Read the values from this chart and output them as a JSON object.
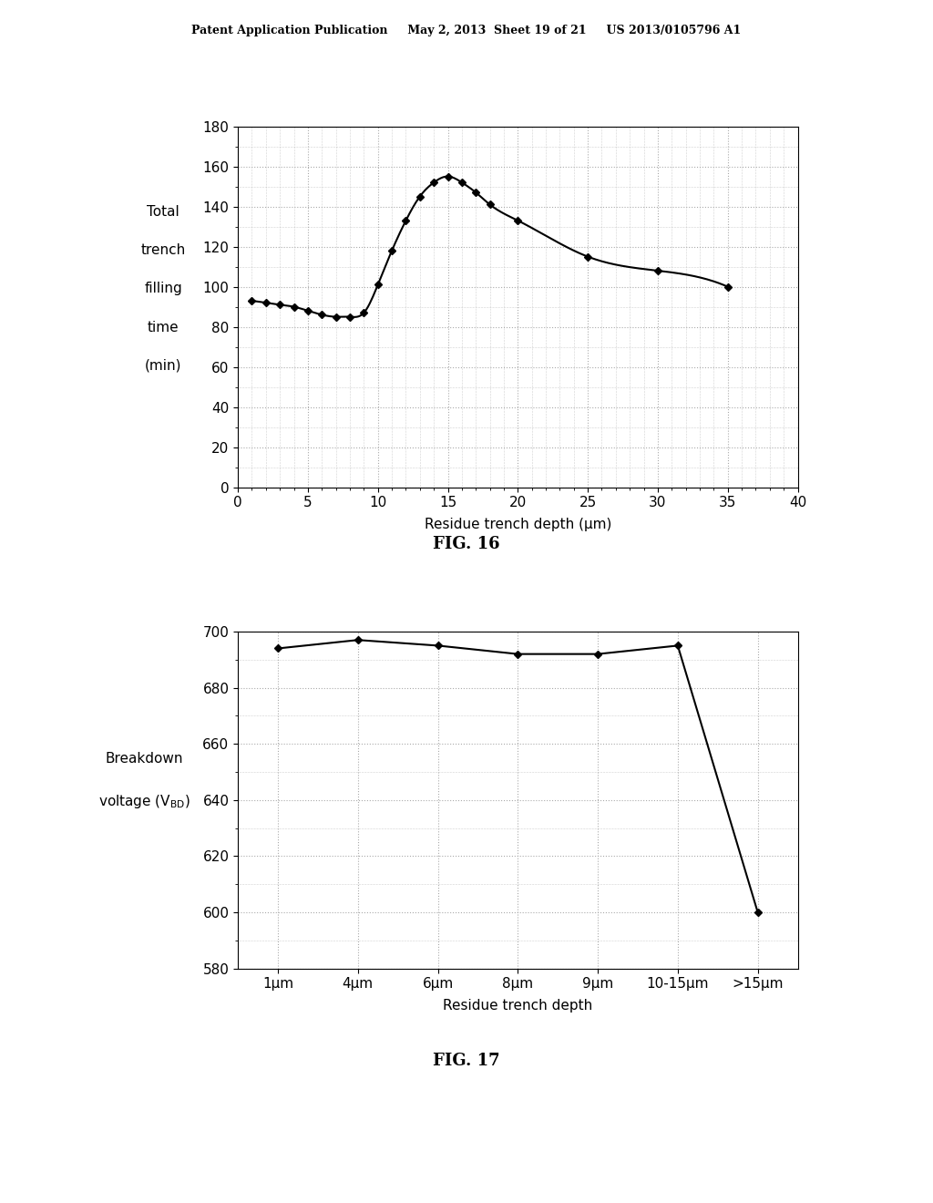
{
  "header_text": "Patent Application Publication     May 2, 2013  Sheet 19 of 21     US 2013/0105796 A1",
  "fig16": {
    "title": "FIG. 16",
    "ylabel_lines": [
      "Total",
      "trench",
      "filling",
      "time",
      "(min)"
    ],
    "xlabel": "Residue trench depth (μm)",
    "xlim": [
      0,
      40
    ],
    "ylim": [
      0,
      180
    ],
    "xticks": [
      0,
      5,
      10,
      15,
      20,
      25,
      30,
      35,
      40
    ],
    "yticks": [
      0,
      20,
      40,
      60,
      80,
      100,
      120,
      140,
      160,
      180
    ],
    "x_data": [
      1,
      2,
      3,
      4,
      5,
      6,
      7,
      8,
      9,
      10,
      11,
      12,
      13,
      14,
      15,
      16,
      17,
      18,
      20,
      25,
      30,
      35
    ],
    "y_data": [
      93,
      92,
      91,
      90,
      88,
      86,
      85,
      85,
      87,
      101,
      118,
      133,
      145,
      152,
      155,
      152,
      147,
      141,
      133,
      115,
      108,
      100
    ]
  },
  "fig17": {
    "title": "FIG. 17",
    "xlabel": "Residue trench depth",
    "xlabels": [
      "1μm",
      "4μm",
      "6μm",
      "8μm",
      "9μm",
      "10-15μm",
      ">15μm"
    ],
    "ylim": [
      580,
      700
    ],
    "yticks": [
      580,
      600,
      620,
      640,
      660,
      680,
      700
    ],
    "y_data": [
      694,
      697,
      695,
      692,
      692,
      695,
      600
    ]
  },
  "line_color": "#000000",
  "marker": "D",
  "markersize": 4,
  "linewidth": 1.5,
  "grid_color": "#aaaaaa",
  "grid_linestyle": ":",
  "bg_color": "#ffffff",
  "font_size": 11,
  "title_font_size": 13
}
